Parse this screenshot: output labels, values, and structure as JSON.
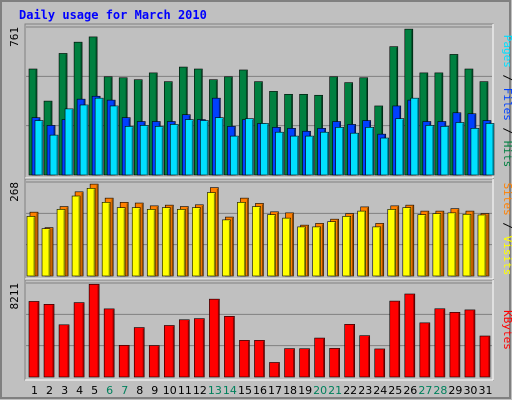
{
  "colors": {
    "background": "#c0c0c0",
    "frame_dark": "#808080",
    "frame_light": "#ffffff",
    "title": "#0000ff",
    "grid": "#808080",
    "hits": "#008040",
    "files": "#0040ff",
    "pages": "#00e0ff",
    "visits": "#ffff00",
    "sites": "#ff8000",
    "kbytes": "#ff0000",
    "weekday": "#000000",
    "weekend": "#00805c"
  },
  "chart_data": {
    "type": "bar",
    "title": "Daily usage for March 2010",
    "categories": [
      "1",
      "2",
      "3",
      "4",
      "5",
      "6",
      "7",
      "8",
      "9",
      "10",
      "11",
      "12",
      "13",
      "14",
      "15",
      "16",
      "17",
      "18",
      "19",
      "20",
      "21",
      "22",
      "23",
      "24",
      "25",
      "26",
      "27",
      "28",
      "29",
      "30",
      "31"
    ],
    "weekend_days": [
      "6",
      "7",
      "13",
      "14",
      "20",
      "21",
      "27",
      "28"
    ],
    "panels": [
      {
        "name": "hits-files-pages",
        "ymax_label": "761",
        "ymax": 761,
        "axis_label": {
          "hits": "Hits",
          "sep1": " / ",
          "files": "Files",
          "sep2": " / ",
          "pages": "Pages"
        },
        "series": [
          {
            "name": "Hits",
            "color_key": "hits",
            "values": [
              545,
              380,
              625,
              683,
              710,
              505,
              500,
              490,
              525,
              480,
              555,
              545,
              490,
              505,
              540,
              480,
              430,
              415,
              415,
              410,
              505,
              475,
              500,
              355,
              660,
              750,
              525,
              525,
              620,
              545,
              480
            ]
          },
          {
            "name": "Files",
            "color_key": "files",
            "values": [
              295,
              255,
              285,
              390,
              405,
              385,
              295,
              275,
              275,
              275,
              310,
              285,
              395,
              250,
              285,
              265,
              245,
              240,
              225,
              240,
              275,
              260,
              280,
              210,
              355,
              385,
              275,
              275,
              320,
              315,
              280
            ]
          },
          {
            "name": "Pages",
            "color_key": "pages",
            "values": [
              280,
              205,
              340,
              360,
              395,
              355,
              250,
              255,
              250,
              260,
              285,
              280,
              295,
              200,
              290,
              265,
              220,
              200,
              200,
              220,
              245,
              215,
              245,
              190,
              290,
              395,
              255,
              250,
              270,
              240,
              265
            ]
          }
        ]
      },
      {
        "name": "visits-sites",
        "ymax_label": "268",
        "ymax": 268,
        "axis_label": {
          "sites": "Sites",
          "sep": " / ",
          "visits": "Visits"
        },
        "series": [
          {
            "name": "Sites",
            "color_key": "sites",
            "values": [
              182,
              138,
              198,
              240,
              262,
              222,
              210,
              208,
              200,
              202,
              198,
              203,
              252,
              168,
              222,
              207,
              183,
              180,
              145,
              150,
              162,
              178,
              197,
              150,
              200,
              202,
              185,
              185,
              192,
              185,
              178
            ]
          },
          {
            "name": "Visits",
            "color_key": "visits",
            "values": [
              170,
              135,
              190,
              228,
              250,
              210,
              195,
              195,
              190,
              195,
              190,
              195,
              238,
              160,
              210,
              198,
              175,
              165,
              140,
              140,
              155,
              170,
              185,
              140,
              190,
              195,
              175,
              178,
              180,
              176,
              174
            ]
          }
        ]
      },
      {
        "name": "kbytes",
        "ymax_label": "8211",
        "ymax": 8211,
        "axis_label": {
          "kbytes": "KBytes"
        },
        "series": [
          {
            "name": "KBytes",
            "color_key": "kbytes",
            "values": [
              6600,
              6350,
              4560,
              6500,
              8100,
              5950,
              2770,
              4320,
              2750,
              4500,
              5000,
              5100,
              6800,
              5300,
              3200,
              3200,
              1270,
              2480,
              2470,
              3400,
              2500,
              4600,
              3610,
              2450,
              6630,
              7250,
              4730,
              5960,
              5650,
              5860,
              3580
            ]
          }
        ]
      }
    ]
  }
}
